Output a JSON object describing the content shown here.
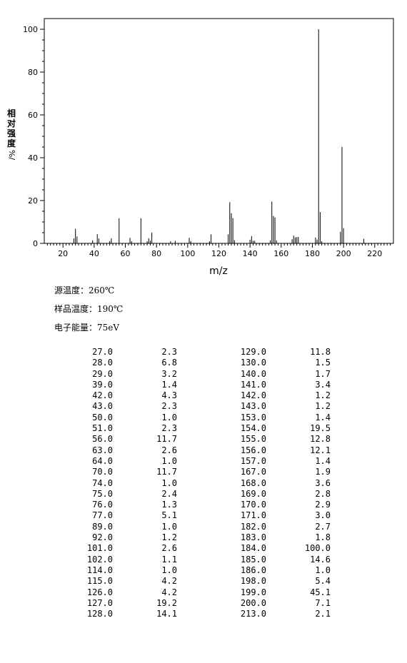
{
  "chart_data": {
    "type": "bar",
    "xlabel": "m/z",
    "ylabel": "相对强度",
    "ylabel_unit": "%/",
    "xlim": [
      8,
      232
    ],
    "ylim": [
      0,
      105
    ],
    "xticks": [
      20,
      40,
      60,
      80,
      100,
      120,
      140,
      160,
      180,
      200,
      220
    ],
    "yticks": [
      0,
      20,
      40,
      60,
      80,
      100
    ],
    "x": [
      27,
      28,
      29,
      39,
      42,
      43,
      50,
      51,
      56,
      63,
      64,
      70,
      74,
      75,
      76,
      77,
      89,
      92,
      101,
      102,
      114,
      115,
      126,
      127,
      128,
      129,
      130,
      140,
      141,
      142,
      143,
      153,
      154,
      155,
      156,
      157,
      167,
      168,
      169,
      170,
      171,
      182,
      183,
      184,
      185,
      186,
      198,
      199,
      200,
      213
    ],
    "values": [
      2.3,
      6.8,
      3.2,
      1.4,
      4.3,
      2.3,
      1.0,
      2.3,
      11.7,
      2.6,
      1.0,
      11.7,
      1.0,
      2.4,
      1.3,
      5.1,
      1.0,
      1.2,
      2.6,
      1.1,
      1.0,
      4.2,
      4.2,
      19.2,
      14.1,
      11.8,
      1.5,
      1.7,
      3.4,
      1.2,
      1.2,
      1.4,
      19.5,
      12.8,
      12.1,
      1.4,
      1.9,
      3.6,
      2.8,
      2.9,
      3.0,
      2.7,
      1.8,
      100.0,
      14.6,
      1.0,
      5.4,
      45.1,
      7.1,
      2.1
    ]
  },
  "params": {
    "source_temp": "源温度：260℃",
    "sample_temp": "样品温度：190℃",
    "electron_energy": "电子能量：75eV"
  },
  "peaks": [
    [
      "27.0",
      "2.3",
      "129.0",
      "11.8"
    ],
    [
      "28.0",
      "6.8",
      "130.0",
      "1.5"
    ],
    [
      "29.0",
      "3.2",
      "140.0",
      "1.7"
    ],
    [
      "39.0",
      "1.4",
      "141.0",
      "3.4"
    ],
    [
      "42.0",
      "4.3",
      "142.0",
      "1.2"
    ],
    [
      "43.0",
      "2.3",
      "143.0",
      "1.2"
    ],
    [
      "50.0",
      "1.0",
      "153.0",
      "1.4"
    ],
    [
      "51.0",
      "2.3",
      "154.0",
      "19.5"
    ],
    [
      "56.0",
      "11.7",
      "155.0",
      "12.8"
    ],
    [
      "63.0",
      "2.6",
      "156.0",
      "12.1"
    ],
    [
      "64.0",
      "1.0",
      "157.0",
      "1.4"
    ],
    [
      "70.0",
      "11.7",
      "167.0",
      "1.9"
    ],
    [
      "74.0",
      "1.0",
      "168.0",
      "3.6"
    ],
    [
      "75.0",
      "2.4",
      "169.0",
      "2.8"
    ],
    [
      "76.0",
      "1.3",
      "170.0",
      "2.9"
    ],
    [
      "77.0",
      "5.1",
      "171.0",
      "3.0"
    ],
    [
      "89.0",
      "1.0",
      "182.0",
      "2.7"
    ],
    [
      "92.0",
      "1.2",
      "183.0",
      "1.8"
    ],
    [
      "101.0",
      "2.6",
      "184.0",
      "100.0"
    ],
    [
      "102.0",
      "1.1",
      "185.0",
      "14.6"
    ],
    [
      "114.0",
      "1.0",
      "186.0",
      "1.0"
    ],
    [
      "115.0",
      "4.2",
      "198.0",
      "5.4"
    ],
    [
      "126.0",
      "4.2",
      "199.0",
      "45.1"
    ],
    [
      "127.0",
      "19.2",
      "200.0",
      "7.1"
    ],
    [
      "128.0",
      "14.1",
      "213.0",
      "2.1"
    ]
  ]
}
